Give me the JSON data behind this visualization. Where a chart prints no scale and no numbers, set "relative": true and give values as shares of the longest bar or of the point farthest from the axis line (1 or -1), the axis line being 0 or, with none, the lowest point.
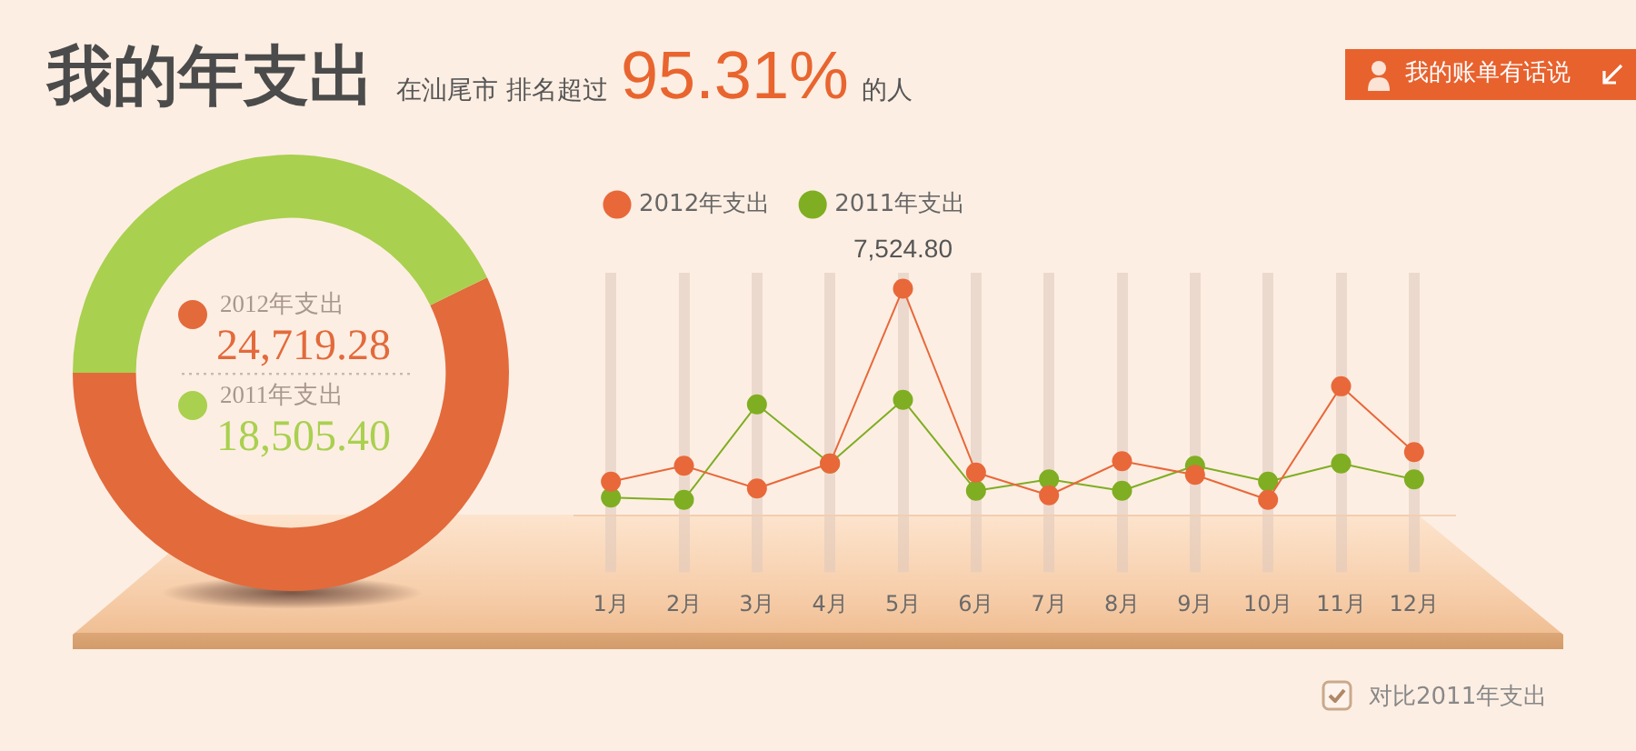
{
  "chart_data": [
    {
      "type": "donut",
      "title": "我的年支出",
      "subtitle": "在汕尾市 排名超过 95.31% 的人",
      "categories": [
        "2012年支出",
        "2011年支出"
      ],
      "values": [
        24719.28,
        18505.4
      ],
      "colors": [
        "#e36a3b",
        "#a9d04f"
      ],
      "value_labels": [
        "24,719.28",
        "18,505.40"
      ],
      "legend": "center"
    },
    {
      "type": "line",
      "categories": [
        "1月",
        "2月",
        "3月",
        "4月",
        "5月",
        "6月",
        "7月",
        "8月",
        "9月",
        "10月",
        "11月",
        "12月"
      ],
      "series": [
        {
          "name": "2012年支出",
          "color": "#e8683a",
          "values": [
            0.15,
            0.22,
            0.12,
            0.23,
            1,
            0.19,
            0.09,
            0.24,
            0.18,
            0.07,
            0.57,
            0.28
          ]
        },
        {
          "name": "2011年支出",
          "color": "#7fae22",
          "values": [
            0.08,
            0.07,
            0.49,
            0.23,
            0.51,
            0.11,
            0.16,
            0.11,
            0.22,
            0.15,
            0.23,
            0.16
          ]
        }
      ],
      "relative": true,
      "legend": "top left",
      "marker": "circle",
      "grid": "x",
      "annotations": [
        "我的账单有话说",
        "对比2011年支出",
        {
          "text": "7,524.80",
          "x": "5月",
          "y": 1
        }
      ]
    }
  ]
}
